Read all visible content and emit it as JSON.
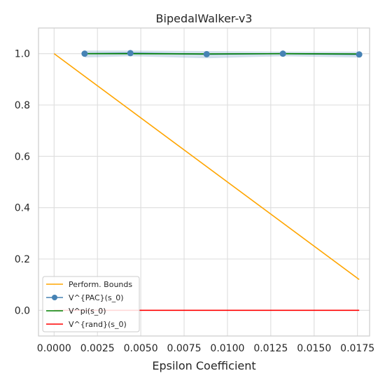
{
  "chart_data": {
    "type": "line",
    "title": "BipedalWalker-v3",
    "xlabel": "Epsilon Coefficient",
    "ylabel": "",
    "xlim": [
      -0.0009,
      0.0182
    ],
    "ylim": [
      -0.1,
      1.1
    ],
    "xticks": [
      0.0,
      0.0025,
      0.005,
      0.0075,
      0.01,
      0.0125,
      0.015,
      0.0175
    ],
    "xtick_labels": [
      "0.0000",
      "0.0025",
      "0.0050",
      "0.0075",
      "0.0100",
      "0.0125",
      "0.0150",
      "0.0175"
    ],
    "yticks": [
      0.0,
      0.2,
      0.4,
      0.6,
      0.8,
      1.0
    ],
    "ytick_labels": [
      "0.0",
      "0.2",
      "0.4",
      "0.6",
      "0.8",
      "1.0"
    ],
    "grid": true,
    "legend": "lower-left",
    "series": [
      {
        "name": "Perform. Bounds",
        "color": "#ffa500",
        "marker": false,
        "x": [
          0.0,
          0.0176
        ],
        "y": [
          1.0,
          0.12
        ]
      },
      {
        "name": "V^{PAC}(s_0)",
        "color": "#4682b4",
        "marker": true,
        "x": [
          0.00176,
          0.0044,
          0.0088,
          0.0132,
          0.0176
        ],
        "y": [
          1.0,
          1.002,
          0.998,
          1.0,
          0.997
        ],
        "band_low": [
          0.985,
          0.99,
          0.982,
          0.99,
          0.985
        ],
        "band_high": [
          1.012,
          1.012,
          1.01,
          1.008,
          1.008
        ]
      },
      {
        "name": "V^pi(s_0)",
        "color": "#008000",
        "marker": false,
        "x": [
          0.00176,
          0.0044,
          0.0088,
          0.0132,
          0.0176
        ],
        "y": [
          1.0,
          1.0,
          0.999,
          1.0,
          0.999
        ]
      },
      {
        "name": "V^{rand}(s_0)",
        "color": "#ff0000",
        "marker": false,
        "x": [
          0.0,
          0.0176
        ],
        "y": [
          0.0,
          0.0
        ]
      }
    ]
  }
}
